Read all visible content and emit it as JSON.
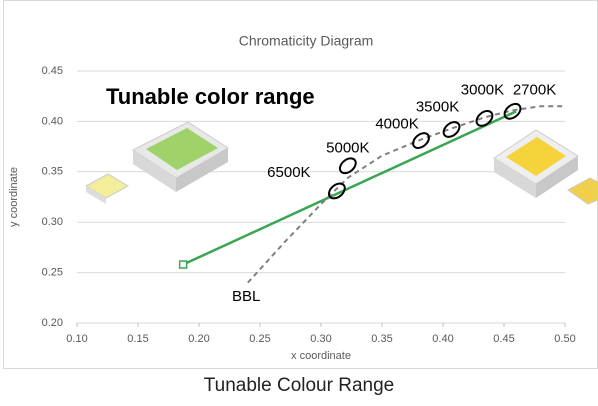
{
  "chart_data": {
    "type": "line",
    "title": "Chromaticity Diagram",
    "xlabel": "x coordinate",
    "ylabel": "y coordinate",
    "caption": "Tunable Colour Range",
    "annotation": "Tunable color range",
    "curve_label": "BBL",
    "xlim": [
      0.1,
      0.5
    ],
    "xticks": [
      {
        "value": 0.1,
        "label": "0.10"
      },
      0.15,
      {
        "value": 0.2,
        "label": "0.20"
      },
      0.25,
      {
        "value": 0.3,
        "label": "0.30"
      },
      0.35,
      {
        "value": 0.4,
        "label": "0.40"
      },
      0.45,
      {
        "value": 0.5,
        "label": "0.50"
      }
    ],
    "ylim": [
      0.2,
      0.45
    ],
    "yticks": [
      {
        "value": 0.2,
        "label": "0.20"
      },
      0.25,
      {
        "value": 0.3,
        "label": "0.30"
      },
      0.35,
      {
        "value": 0.4,
        "label": "0.40"
      },
      0.45
    ],
    "grid": true,
    "series": [
      {
        "color": "#3aa552",
        "dashed": false,
        "x": [
          0.187,
          0.46
        ],
        "values": [
          0.258,
          0.41
        ]
      },
      {
        "color": "#808080",
        "dashed": true,
        "x": [
          0.24,
          0.27,
          0.3,
          0.322,
          0.35,
          0.382,
          0.407,
          0.434,
          0.457,
          0.48,
          0.5
        ],
        "values": [
          0.24,
          0.28,
          0.318,
          0.344,
          0.366,
          0.382,
          0.393,
          0.404,
          0.411,
          0.415,
          0.415
        ]
      }
    ],
    "points": [
      {
        "label": "6500K",
        "x": 0.313,
        "y": 0.331
      },
      {
        "label": "5000K",
        "x": 0.322,
        "y": 0.356
      },
      {
        "label": "4000K",
        "x": 0.382,
        "y": 0.381
      },
      {
        "label": "3500K",
        "x": 0.407,
        "y": 0.392
      },
      {
        "label": "3000K",
        "x": 0.434,
        "y": 0.403
      },
      {
        "label": "2700K",
        "x": 0.457,
        "y": 0.41
      }
    ]
  }
}
